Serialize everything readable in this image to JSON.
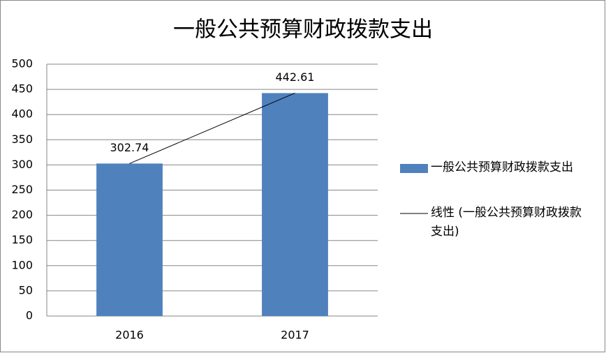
{
  "chart_data": {
    "type": "bar",
    "title": "一般公共预算财政拨款支出",
    "categories": [
      "2016",
      "2017"
    ],
    "series": [
      {
        "name": "一般公共预算财政拨款支出",
        "color": "#4f81bd",
        "values": [
          302.74,
          442.61
        ]
      }
    ],
    "trendline": {
      "name": "线性 (一般公共预算财政拨款支出)",
      "color": "#000000"
    },
    "ylim": [
      0,
      500
    ],
    "yticks": [
      0,
      50,
      100,
      150,
      200,
      250,
      300,
      350,
      400,
      450,
      500
    ],
    "grid": true,
    "legend": "right"
  }
}
